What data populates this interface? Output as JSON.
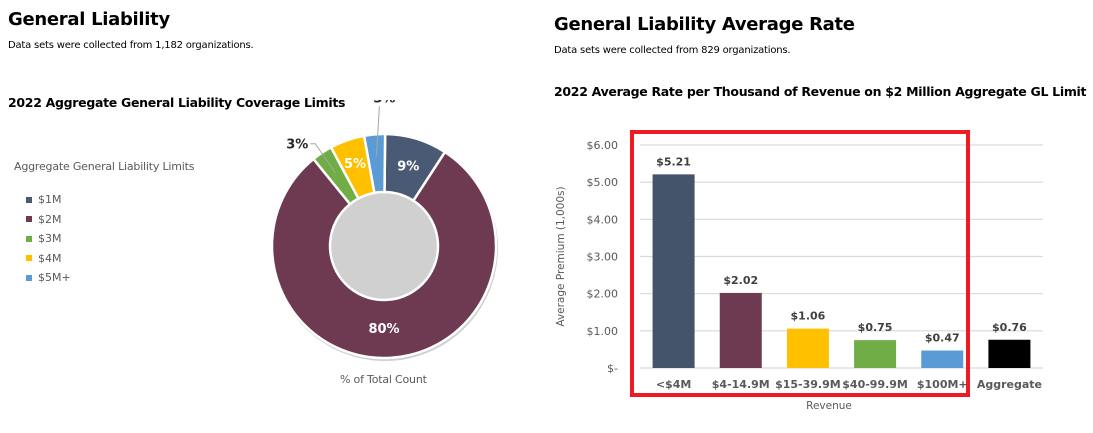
{
  "left": {
    "title": "General Liability",
    "subtitle": "Data sets were collected from 1,182 organizations."
  },
  "right": {
    "title": "General Liability Average Rate",
    "subtitle": "Data sets were collected from 829 organizations."
  },
  "colors": {
    "slate": "#4A5A74",
    "plum": "#6E3A52",
    "green": "#70AD47",
    "gold": "#FFC000",
    "blue": "#5B9BD5",
    "black": "#000000",
    "highlight": "#ED1C24",
    "grid": "#D9D9D9",
    "axis_text": "#595959"
  },
  "chart_data": [
    {
      "type": "pie",
      "variant": "donut",
      "title": "2022 Aggregate General Liability Coverage Limits",
      "legend_title": "Aggregate General Liability Limits",
      "legend_position": "left",
      "xlabel": "% of Total Count",
      "categories": [
        "$1M",
        "$2M",
        "$3M",
        "$4M",
        "$5M+"
      ],
      "values": [
        9,
        80,
        3,
        5,
        3
      ],
      "labels": [
        "9%",
        "80%",
        "3%",
        "5%",
        "3%"
      ],
      "colors": [
        "#4A5A74",
        "#6E3A52",
        "#70AD47",
        "#FFC000",
        "#5B9BD5"
      ]
    },
    {
      "type": "bar",
      "title": "2022 Average Rate per Thousand of Revenue on $2 Million Aggregate GL Limit",
      "xlabel": "Revenue",
      "ylabel": "Average Premium (1,000s)",
      "categories": [
        "<$4M",
        "$4-14.9M",
        "$15-39.9M",
        "$40-99.9M",
        "$100M+",
        "Aggregate"
      ],
      "values": [
        5.21,
        2.02,
        1.06,
        0.75,
        0.47,
        0.76
      ],
      "data_labels": [
        "$5.21",
        "$2.02",
        "$1.06",
        "$0.75",
        "$0.47",
        "$0.76"
      ],
      "colors": [
        "#44546A",
        "#6E3A52",
        "#FFC000",
        "#70AD47",
        "#5B9BD5",
        "#000000"
      ],
      "ylim": [
        0,
        6
      ],
      "yticks": [
        0,
        1,
        2,
        3,
        4,
        5,
        6
      ],
      "ytick_labels": [
        "$-",
        "$1.00",
        "$2.00",
        "$3.00",
        "$4.00",
        "$5.00",
        "$6.00"
      ],
      "grid": true,
      "highlight": "red box around the first five revenue categories"
    }
  ]
}
